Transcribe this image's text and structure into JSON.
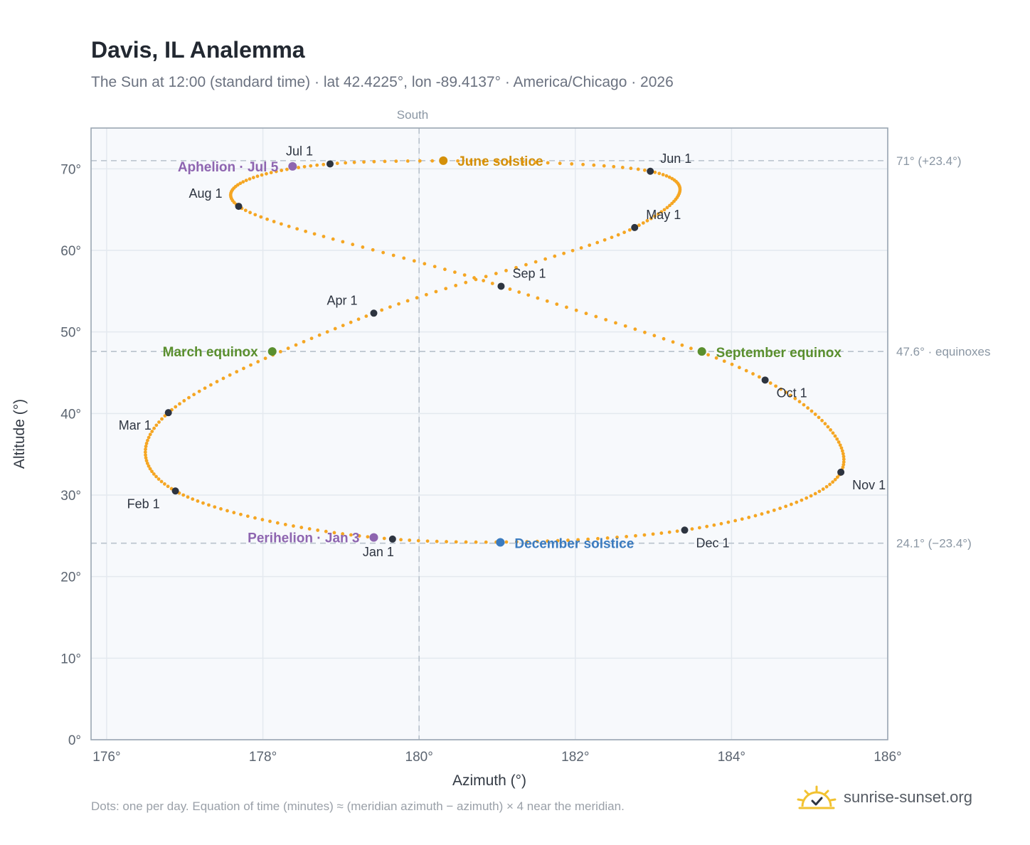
{
  "title": "Davis, IL Analemma",
  "subtitle": "The Sun at 12:00 (standard time) · lat 42.4225°, lon -89.4137° · America/Chicago · 2026",
  "footnote": "Dots: one per day. Equation of time (minutes) ≈ (meridian azimuth − azimuth) × 4 near the meridian.",
  "brand": {
    "text": "sunrise-sunset.org",
    "icon": "sun-check-icon"
  },
  "colors": {
    "curve": "#f5a623",
    "month_dot": "#2d3440",
    "june_solstice": "#d4900a",
    "december_solstice": "#3b7bbf",
    "equinox": "#5a8f2e",
    "apsis": "#8e65b0",
    "plot_bg": "#f7f9fc",
    "grid": "#e4e9ef",
    "ref_line": "#b8c2cc",
    "frame": "#9aa6b2"
  },
  "chart_data": {
    "type": "scatter",
    "xlabel": "Azimuth (°)",
    "ylabel": "Altitude (°)",
    "xlim": [
      175.8,
      186.0
    ],
    "ylim": [
      0,
      75
    ],
    "x_ticks": [
      176,
      178,
      180,
      182,
      184,
      186
    ],
    "x_tick_labels": [
      "176°",
      "178°",
      "180°",
      "182°",
      "184°",
      "186°"
    ],
    "y_ticks": [
      0,
      10,
      20,
      30,
      40,
      50,
      60,
      70
    ],
    "y_tick_labels": [
      "0°",
      "10°",
      "20°",
      "30°",
      "40°",
      "50°",
      "60°",
      "70°"
    ],
    "grid": true,
    "meridian": {
      "azimuth": 180,
      "label": "South"
    },
    "reference_lines": [
      {
        "altitude": 71.0,
        "label": "71° (+23.4°)"
      },
      {
        "altitude": 47.6,
        "label": "47.6° · equinoxes"
      },
      {
        "altitude": 24.1,
        "label": "24.1° (−23.4°)"
      }
    ],
    "month_points": [
      {
        "label": "Jan 1",
        "azimuth": 179.66,
        "altitude": 24.6
      },
      {
        "label": "Feb 1",
        "azimuth": 176.88,
        "altitude": 30.5
      },
      {
        "label": "Mar 1",
        "azimuth": 176.79,
        "altitude": 40.1
      },
      {
        "label": "Apr 1",
        "azimuth": 179.42,
        "altitude": 52.3
      },
      {
        "label": "May 1",
        "azimuth": 182.76,
        "altitude": 62.8
      },
      {
        "label": "Jun 1",
        "azimuth": 182.96,
        "altitude": 69.7
      },
      {
        "label": "Jul 1",
        "azimuth": 178.86,
        "altitude": 70.6
      },
      {
        "label": "Aug 1",
        "azimuth": 177.69,
        "altitude": 65.4
      },
      {
        "label": "Sep 1",
        "azimuth": 181.05,
        "altitude": 55.6
      },
      {
        "label": "Oct 1",
        "azimuth": 184.43,
        "altitude": 44.1
      },
      {
        "label": "Nov 1",
        "azimuth": 185.4,
        "altitude": 32.8
      },
      {
        "label": "Dec 1",
        "azimuth": 183.4,
        "altitude": 25.7
      }
    ],
    "events": [
      {
        "label": "June solstice",
        "azimuth": 180.31,
        "altitude": 71.0,
        "kind": "june_solstice"
      },
      {
        "label": "December solstice",
        "azimuth": 181.04,
        "altitude": 24.2,
        "kind": "december_solstice"
      },
      {
        "label": "March equinox",
        "azimuth": 178.12,
        "altitude": 47.6,
        "kind": "equinox"
      },
      {
        "label": "September equinox",
        "azimuth": 183.62,
        "altitude": 47.6,
        "kind": "equinox"
      },
      {
        "label": "Aphelion · Jul 5",
        "azimuth": 178.38,
        "altitude": 70.3,
        "kind": "apsis"
      },
      {
        "label": "Perihelion · Jan 3",
        "azimuth": 179.42,
        "altitude": 24.8,
        "kind": "apsis"
      }
    ]
  }
}
